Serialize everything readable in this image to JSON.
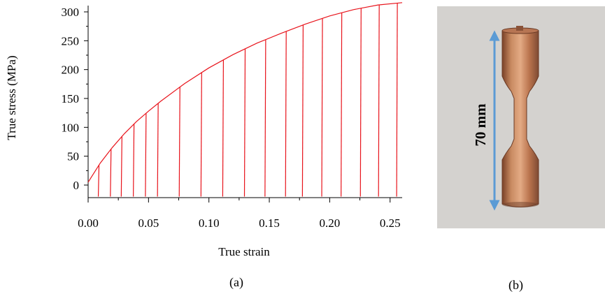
{
  "chart_data": {
    "type": "line",
    "xlabel": "True strain",
    "ylabel": "True stress (MPa)",
    "xlim": [
      0.0,
      0.26
    ],
    "ylim": [
      -20,
      315
    ],
    "x_ticks": [
      "0.00",
      "0.05",
      "0.10",
      "0.15",
      "0.20",
      "0.25"
    ],
    "y_ticks": [
      "0",
      "50",
      "100",
      "150",
      "200",
      "250",
      "300"
    ],
    "series_color": "#e8141c",
    "curve": {
      "x": [
        0.0,
        0.01,
        0.02,
        0.03,
        0.04,
        0.05,
        0.06,
        0.08,
        0.1,
        0.12,
        0.14,
        0.16,
        0.18,
        0.2,
        0.22,
        0.24,
        0.26
      ],
      "y": [
        5,
        38,
        65,
        89,
        110,
        128,
        145,
        176,
        203,
        226,
        246,
        263,
        279,
        293,
        304,
        312,
        316
      ]
    },
    "unloading_strains": [
      0.009,
      0.019,
      0.028,
      0.038,
      0.048,
      0.058,
      0.076,
      0.094,
      0.112,
      0.13,
      0.147,
      0.164,
      0.178,
      0.194,
      0.21,
      0.226,
      0.241,
      0.256
    ],
    "unload_min_stress": -20,
    "grid": false,
    "caption": "(a)"
  },
  "photo": {
    "dimension_label": "70 mm",
    "arrow_color": "#5b9bd5",
    "background_color": "#d4d2cf",
    "specimen_color": "#c07a52",
    "caption": "(b)"
  }
}
